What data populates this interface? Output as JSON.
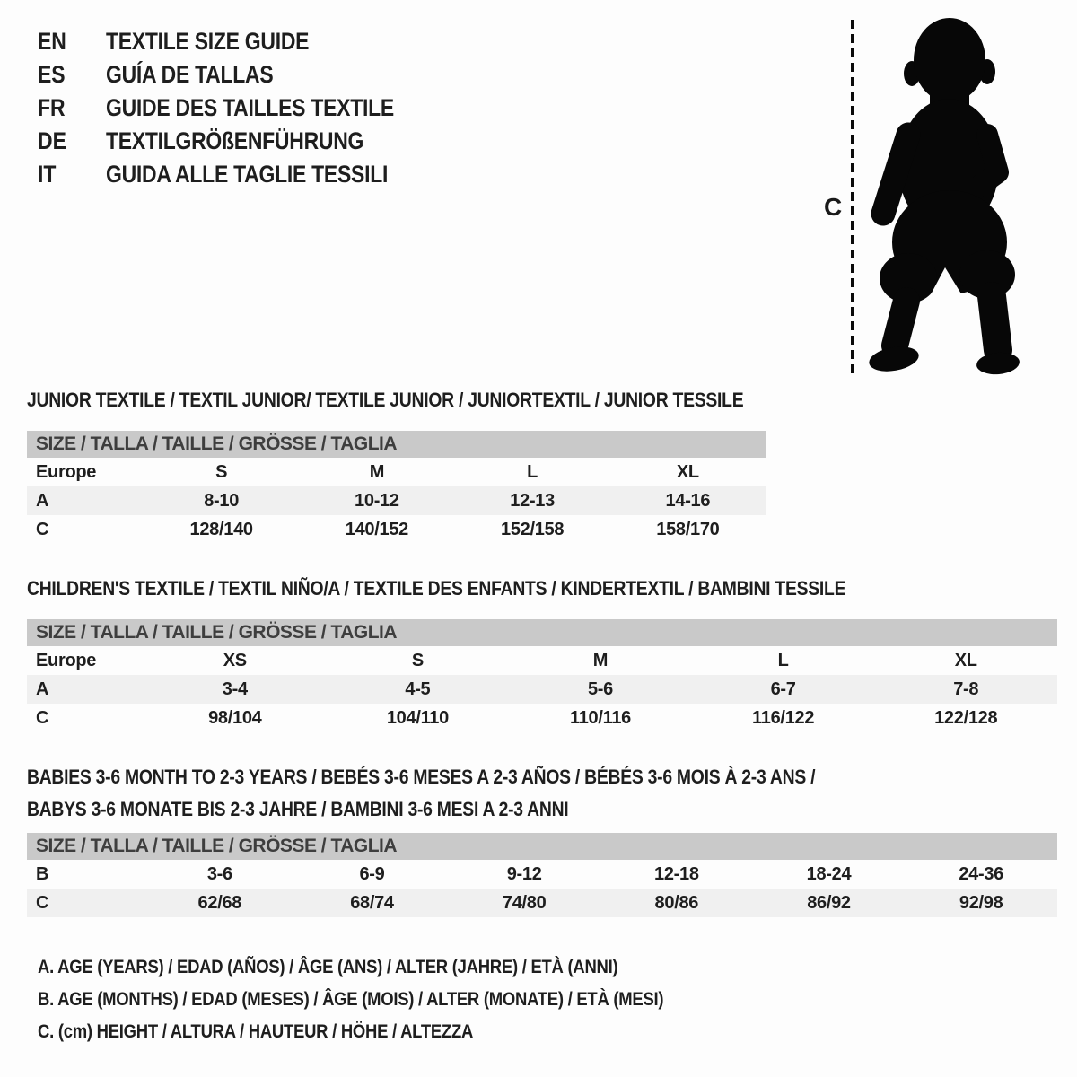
{
  "colors": {
    "background": "#fdfdfd",
    "text": "#1e1e1e",
    "size_bar_bg": "#c9c9c9",
    "size_bar_text": "#3e3e3e",
    "row_stripe_bg": "#f0f0f0",
    "silhouette": "#070707"
  },
  "languages": [
    {
      "code": "EN",
      "title": "TEXTILE SIZE GUIDE"
    },
    {
      "code": "ES",
      "title": "GUÍA DE TALLAS"
    },
    {
      "code": "FR",
      "title": "GUIDE DES TAILLES TEXTILE"
    },
    {
      "code": "DE",
      "title": "TEXTILGRÖßENFÜHRUNG"
    },
    {
      "code": "IT",
      "title": "GUIDA ALLE TAGLIE TESSILI"
    }
  ],
  "figure": {
    "height_label": "C",
    "icon": "toddler-silhouette"
  },
  "sections": [
    {
      "id": "junior",
      "heading_lines": [
        "JUNIOR TEXTILE / TEXTIL JUNIOR/ TEXTILE JUNIOR / JUNIORTEXTIL / JUNIOR TESSILE"
      ],
      "size_header": "SIZE / TALLA / TAILLE / GRÖSSE / TAGLIA",
      "rows": [
        {
          "label": "Europe",
          "shaded": false,
          "cells": [
            "S",
            "M",
            "L",
            "XL"
          ]
        },
        {
          "label": "A",
          "shaded": true,
          "cells": [
            "8-10",
            "10-12",
            "12-13",
            "14-16"
          ]
        },
        {
          "label": "C",
          "shaded": false,
          "cells": [
            "128/140",
            "140/152",
            "152/158",
            "158/170"
          ]
        }
      ]
    },
    {
      "id": "children",
      "heading_lines": [
        "CHILDREN'S TEXTILE / TEXTIL NIÑO/A / TEXTILE DES ENFANTS / KINDERTEXTIL / BAMBINI TESSILE"
      ],
      "size_header": "SIZE / TALLA / TAILLE / GRÖSSE / TAGLIA",
      "rows": [
        {
          "label": "Europe",
          "shaded": false,
          "cells": [
            "XS",
            "S",
            "M",
            "L",
            "XL"
          ]
        },
        {
          "label": "A",
          "shaded": true,
          "cells": [
            "3-4",
            "4-5",
            "5-6",
            "6-7",
            "7-8"
          ]
        },
        {
          "label": "C",
          "shaded": false,
          "cells": [
            "98/104",
            "104/110",
            "110/116",
            "116/122",
            "122/128"
          ]
        }
      ]
    },
    {
      "id": "babies",
      "heading_lines": [
        "BABIES 3-6 MONTH TO 2-3 YEARS / BEBÉS 3-6 MESES A 2-3 AÑOS / BÉBÉS 3-6 MOIS À 2-3 ANS /",
        "BABYS 3-6 MONATE BIS 2-3 JAHRE / BAMBINI 3-6 MESI A 2-3 ANNI"
      ],
      "size_header": "SIZE / TALLA / TAILLE / GRÖSSE / TAGLIA",
      "rows": [
        {
          "label": "B",
          "shaded": false,
          "cells": [
            "3-6",
            "6-9",
            "9-12",
            "12-18",
            "18-24",
            "24-36"
          ]
        },
        {
          "label": "C",
          "shaded": true,
          "cells": [
            "62/68",
            "68/74",
            "74/80",
            "80/86",
            "86/92",
            "92/98"
          ]
        }
      ]
    }
  ],
  "legend": {
    "lines": [
      "A. AGE (YEARS) / EDAD (AÑOS) / ÂGE (ANS) / ALTER (JAHRE) / ETÀ (ANNI)",
      "B. AGE (MONTHS) / EDAD (MESES) / ÂGE (MOIS) / ALTER (MONATE) / ETÀ (MESI)",
      "C. (cm) HEIGHT / ALTURA / HAUTEUR / HÖHE / ALTEZZA"
    ]
  }
}
